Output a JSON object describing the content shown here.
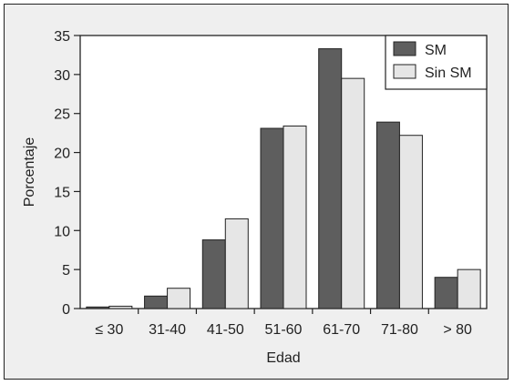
{
  "chart_data": {
    "type": "bar",
    "xlabel": "Edad",
    "ylabel": "Porcentaje",
    "categories": [
      "≤ 30",
      "31-40",
      "41-50",
      "51-60",
      "61-70",
      "71-80",
      "> 80"
    ],
    "series": [
      {
        "name": "SM",
        "values": [
          0.2,
          1.6,
          8.8,
          23.1,
          33.3,
          23.9,
          4.0
        ],
        "color": "#5e5e5e"
      },
      {
        "name": "Sin SM",
        "values": [
          0.3,
          2.6,
          11.5,
          23.4,
          29.5,
          22.2,
          5.0
        ],
        "color": "#e6e6e6"
      }
    ],
    "ylim": [
      0,
      35
    ],
    "yticks": [
      "0",
      "5",
      "10",
      "15",
      "20",
      "25",
      "30",
      "35"
    ],
    "grid": false,
    "legend": "top-right"
  }
}
